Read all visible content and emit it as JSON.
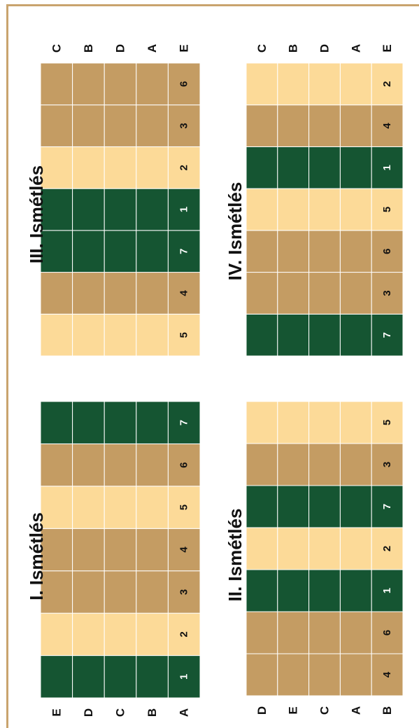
{
  "colors": {
    "dark_green": "#155532",
    "tan": "#C49C63",
    "pale": "#FCDA98",
    "frame": "#C9A46E",
    "text": "#111111"
  },
  "blocks": [
    {
      "title": "I. Ismétlés",
      "treatments": [
        "1",
        "2",
        "3",
        "4",
        "5",
        "6",
        "7"
      ],
      "fills": [
        "dark_green",
        "pale",
        "tan",
        "tan",
        "pale",
        "tan",
        "dark_green"
      ],
      "varieties": [
        "E",
        "D",
        "C",
        "B",
        "A"
      ]
    },
    {
      "title": "II. Ismétlés",
      "treatments": [
        "4",
        "6",
        "1",
        "2",
        "7",
        "3",
        "5"
      ],
      "fills": [
        "tan",
        "tan",
        "dark_green",
        "pale",
        "dark_green",
        "tan",
        "pale"
      ],
      "varieties": [
        "D",
        "E",
        "C",
        "A",
        "B"
      ]
    },
    {
      "title": "III. Ismétlés",
      "treatments": [
        "5",
        "4",
        "7",
        "1",
        "2",
        "3",
        "6"
      ],
      "fills": [
        "pale",
        "tan",
        "dark_green",
        "dark_green",
        "pale",
        "tan",
        "tan"
      ],
      "varieties": [
        "C",
        "B",
        "D",
        "A",
        "E"
      ]
    },
    {
      "title": "IV. Ismétlés",
      "treatments": [
        "7",
        "3",
        "6",
        "5",
        "1",
        "4",
        "2"
      ],
      "fills": [
        "dark_green",
        "tan",
        "tan",
        "pale",
        "dark_green",
        "tan",
        "pale"
      ],
      "varieties": [
        "C",
        "B",
        "D",
        "A",
        "E"
      ]
    }
  ]
}
